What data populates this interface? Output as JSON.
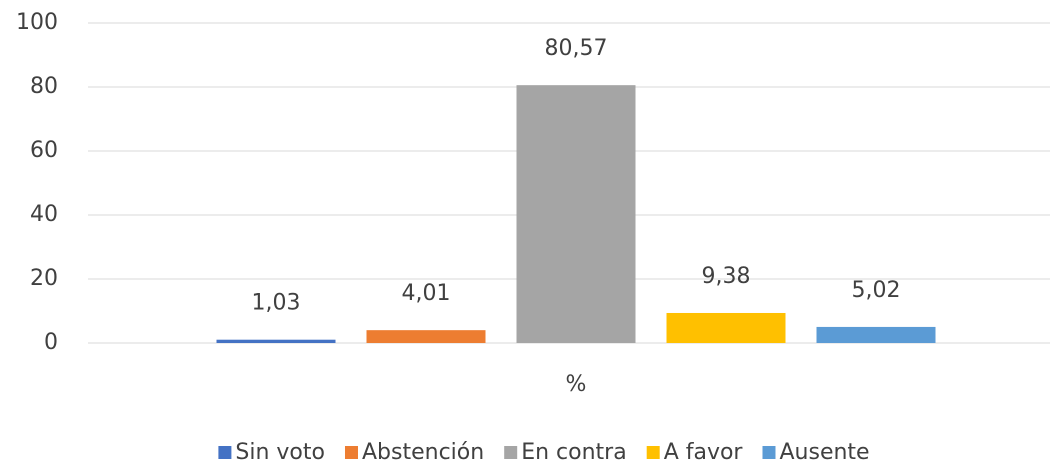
{
  "chart_data": {
    "type": "bar",
    "categories": [
      "%"
    ],
    "series": [
      {
        "name": "Sin voto",
        "color": "#4472c4",
        "values": [
          1.03
        ],
        "value_labels": [
          "1,03"
        ]
      },
      {
        "name": "Abstención",
        "color": "#ed7d31",
        "values": [
          4.01
        ],
        "value_labels": [
          "4,01"
        ]
      },
      {
        "name": "En contra",
        "color": "#a5a5a5",
        "values": [
          80.57
        ],
        "value_labels": [
          "80,57"
        ]
      },
      {
        "name": "A favor",
        "color": "#ffc000",
        "values": [
          9.38
        ],
        "value_labels": [
          "9,38"
        ]
      },
      {
        "name": "Ausente",
        "color": "#5b9bd5",
        "values": [
          5.02
        ],
        "value_labels": [
          "5,02"
        ]
      }
    ],
    "ylim": [
      0,
      100
    ],
    "yticks": [
      0,
      20,
      40,
      60,
      80,
      100
    ],
    "grid": true,
    "legend": "bottom"
  }
}
